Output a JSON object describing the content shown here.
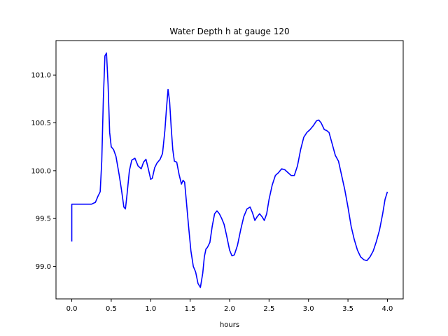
{
  "chart_data": {
    "type": "line",
    "title": "Water Depth h at gauge 120",
    "xlabel": "hours",
    "ylabel": "",
    "xlim": [
      -0.2,
      4.2
    ],
    "ylim": [
      98.66,
      101.36
    ],
    "x_ticks": [
      0.0,
      0.5,
      1.0,
      1.5,
      2.0,
      2.5,
      3.0,
      3.5,
      4.0
    ],
    "x_tick_labels": [
      "0.0",
      "0.5",
      "1.0",
      "1.5",
      "2.0",
      "2.5",
      "3.0",
      "3.5",
      "4.0"
    ],
    "y_ticks": [
      99.0,
      99.5,
      100.0,
      100.5,
      101.0
    ],
    "y_tick_labels": [
      "99.0",
      "99.5",
      "100.0",
      "100.5",
      "101.0"
    ],
    "grid": false,
    "legend": "none",
    "series": [
      {
        "color": "#0000ff",
        "x": [
          0.0,
          0.0,
          0.05,
          0.15,
          0.25,
          0.3,
          0.33,
          0.36,
          0.38,
          0.4,
          0.42,
          0.44,
          0.46,
          0.48,
          0.5,
          0.53,
          0.56,
          0.6,
          0.63,
          0.66,
          0.68,
          0.7,
          0.73,
          0.76,
          0.8,
          0.84,
          0.88,
          0.91,
          0.94,
          0.97,
          1.0,
          1.02,
          1.05,
          1.08,
          1.1,
          1.12,
          1.15,
          1.18,
          1.2,
          1.22,
          1.24,
          1.26,
          1.28,
          1.3,
          1.33,
          1.36,
          1.39,
          1.41,
          1.43,
          1.45,
          1.48,
          1.51,
          1.54,
          1.57,
          1.6,
          1.63,
          1.66,
          1.68,
          1.7,
          1.72,
          1.75,
          1.78,
          1.81,
          1.84,
          1.87,
          1.9,
          1.93,
          1.96,
          2.0,
          2.03,
          2.06,
          2.1,
          2.14,
          2.18,
          2.22,
          2.26,
          2.29,
          2.32,
          2.35,
          2.38,
          2.41,
          2.44,
          2.47,
          2.5,
          2.54,
          2.58,
          2.62,
          2.66,
          2.7,
          2.74,
          2.78,
          2.82,
          2.86,
          2.9,
          2.94,
          2.98,
          3.02,
          3.06,
          3.1,
          3.13,
          3.16,
          3.2,
          3.23,
          3.26,
          3.3,
          3.34,
          3.38,
          3.42,
          3.46,
          3.5,
          3.54,
          3.58,
          3.62,
          3.66,
          3.7,
          3.74,
          3.78,
          3.82,
          3.86,
          3.9,
          3.94,
          3.97,
          4.0
        ],
        "y": [
          99.26,
          99.65,
          99.65,
          99.65,
          99.65,
          99.67,
          99.73,
          99.78,
          100.1,
          100.75,
          101.2,
          101.23,
          100.9,
          100.4,
          100.25,
          100.22,
          100.15,
          99.96,
          99.8,
          99.62,
          99.6,
          99.75,
          100.0,
          100.11,
          100.13,
          100.05,
          100.02,
          100.09,
          100.12,
          100.02,
          99.91,
          99.92,
          100.03,
          100.08,
          100.1,
          100.12,
          100.18,
          100.42,
          100.65,
          100.85,
          100.72,
          100.45,
          100.22,
          100.1,
          100.09,
          99.96,
          99.86,
          99.9,
          99.88,
          99.7,
          99.42,
          99.16,
          99.0,
          98.94,
          98.82,
          98.78,
          98.93,
          99.1,
          99.18,
          99.2,
          99.25,
          99.42,
          99.55,
          99.58,
          99.55,
          99.5,
          99.44,
          99.33,
          99.17,
          99.11,
          99.12,
          99.22,
          99.38,
          99.52,
          99.6,
          99.62,
          99.56,
          99.48,
          99.52,
          99.55,
          99.52,
          99.48,
          99.55,
          99.7,
          99.85,
          99.95,
          99.98,
          100.02,
          100.01,
          99.98,
          99.95,
          99.95,
          100.05,
          100.22,
          100.35,
          100.4,
          100.43,
          100.47,
          100.52,
          100.53,
          100.5,
          100.43,
          100.42,
          100.4,
          100.28,
          100.16,
          100.1,
          99.95,
          99.8,
          99.62,
          99.42,
          99.28,
          99.17,
          99.1,
          99.07,
          99.06,
          99.1,
          99.16,
          99.26,
          99.38,
          99.55,
          99.7,
          99.78
        ]
      }
    ]
  }
}
